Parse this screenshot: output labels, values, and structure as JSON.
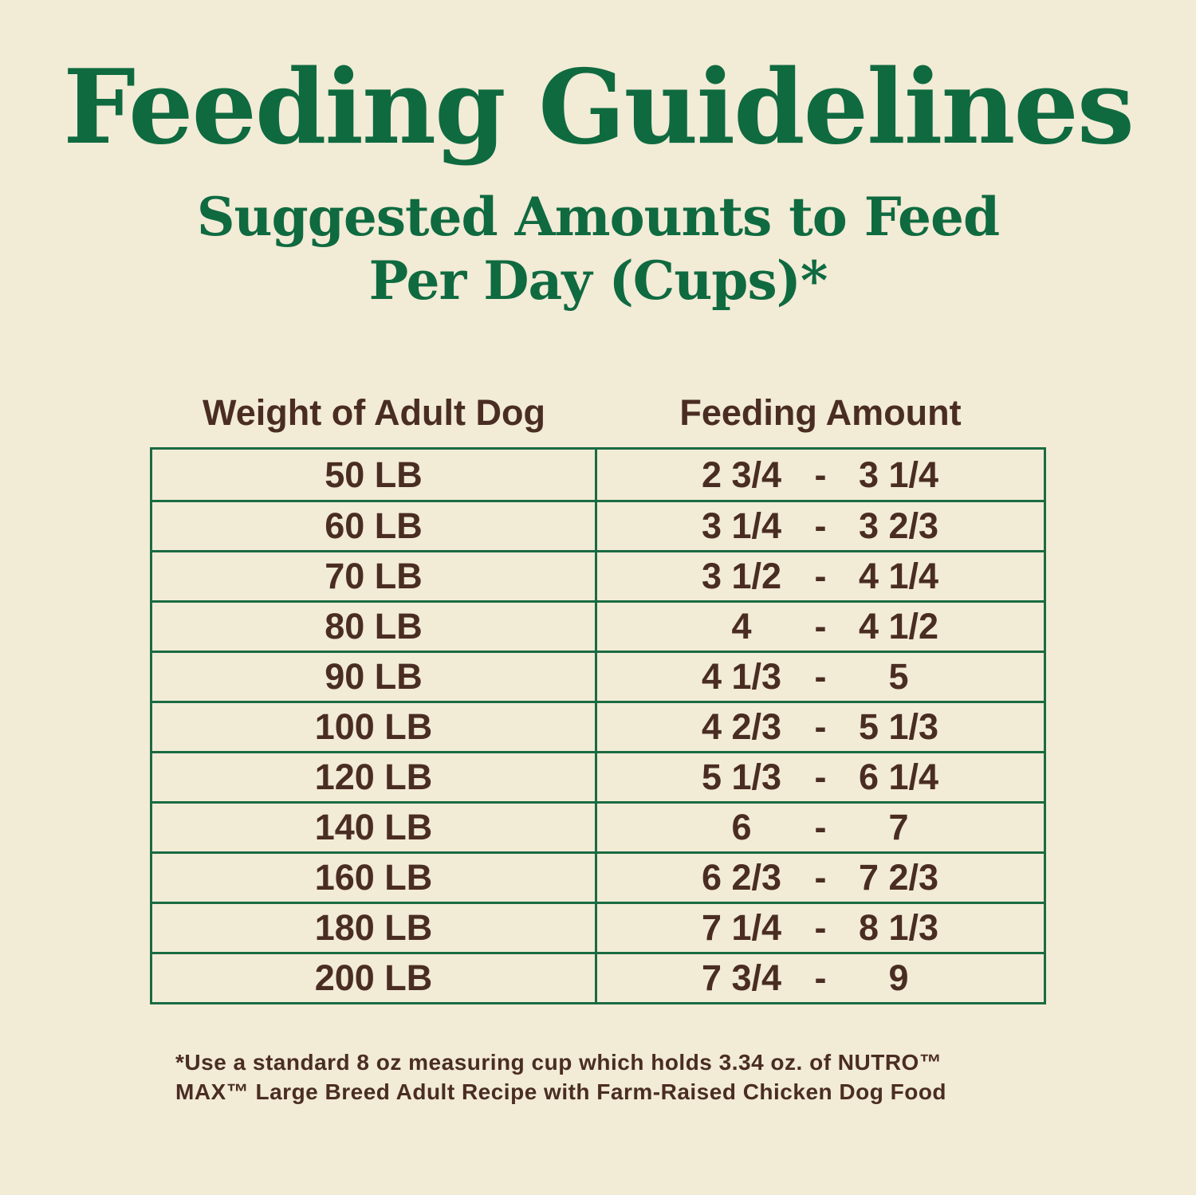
{
  "title": "Feeding Guidelines",
  "subtitle_line1": "Suggested Amounts to Feed",
  "subtitle_line2": "Per Day (Cups)*",
  "table": {
    "headers": {
      "weight": "Weight of Adult Dog",
      "amount": "Feeding Amount"
    },
    "dash": "-",
    "rows": [
      {
        "weight": "50 LB",
        "min": "2 3/4",
        "max": "3 1/4"
      },
      {
        "weight": "60 LB",
        "min": "3 1/4",
        "max": "3 2/3"
      },
      {
        "weight": "70 LB",
        "min": "3 1/2",
        "max": "4 1/4"
      },
      {
        "weight": "80 LB",
        "min": "4",
        "max": "4 1/2"
      },
      {
        "weight": "90 LB",
        "min": "4 1/3",
        "max": "5"
      },
      {
        "weight": "100 LB",
        "min": "4 2/3",
        "max": "5 1/3"
      },
      {
        "weight": "120 LB",
        "min": "5 1/3",
        "max": "6 1/4"
      },
      {
        "weight": "140 LB",
        "min": "6",
        "max": "7"
      },
      {
        "weight": "160 LB",
        "min": "6 2/3",
        "max": "7 2/3"
      },
      {
        "weight": "180 LB",
        "min": "7 1/4",
        "max": "8 1/3"
      },
      {
        "weight": "200 LB",
        "min": "7 3/4",
        "max": "9"
      }
    ]
  },
  "footnote_line1": "*Use a standard 8 oz measuring cup which holds 3.34 oz. of NUTRO™",
  "footnote_line2": "MAX™ Large Breed Adult Recipe with Farm-Raised Chicken Dog Food",
  "colors": {
    "background": "#f2ebd6",
    "heading_green": "#0f6a40",
    "table_border": "#1a6b42",
    "text_brown": "#4a2d22"
  }
}
